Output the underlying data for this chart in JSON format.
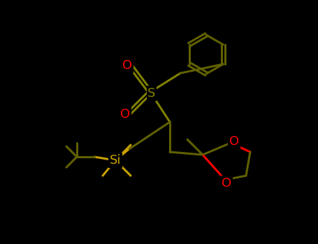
{
  "bg": "#000000",
  "bond_color": "#808000",
  "carbon_color": "#808000",
  "S_sulfone_color": "#808000",
  "S_sulfone_label": "S",
  "O_color": "#ff0000",
  "Si_color": "#c8a000",
  "Si_label": "Si",
  "O_label": "O",
  "figsize": [
    4.55,
    3.5
  ],
  "dpi": 100
}
